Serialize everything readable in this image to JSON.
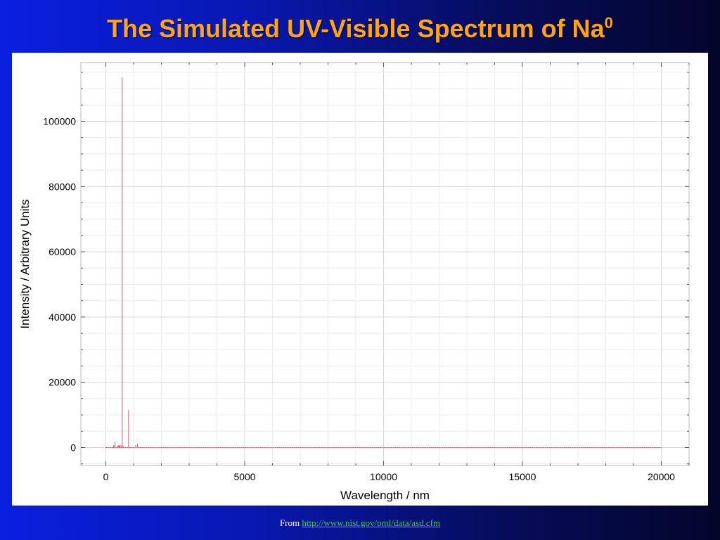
{
  "header": {
    "title": "The Simulated UV-Visible Spectrum of Na",
    "title_superscript": "0"
  },
  "footer": {
    "prefix": "From ",
    "link_text": "http://www.nist.gov/pml/data/asd.cfm"
  },
  "chart_data": {
    "type": "bar",
    "xlabel": "Wavelength / nm",
    "ylabel": "Intensity / Arbitrary Units",
    "xlim": [
      -900,
      21000
    ],
    "ylim": [
      -5500,
      118000
    ],
    "x_ticks": [
      0,
      5000,
      10000,
      15000,
      20000
    ],
    "y_ticks": [
      0,
      20000,
      40000,
      60000,
      80000,
      100000
    ],
    "grid": true,
    "line_color": "#e8505a",
    "series": [
      {
        "x": [
          285,
          300,
          330,
          430,
          450,
          475,
          500,
          515,
          570,
          589,
          616,
          819,
          1075,
          1140,
          1268
        ],
        "y": [
          800,
          300,
          1800,
          500,
          700,
          600,
          400,
          800,
          700,
          113500,
          500,
          11500,
          700,
          1200,
          150
        ],
        "baseline_x": [
          0,
          20000
        ]
      }
    ]
  }
}
